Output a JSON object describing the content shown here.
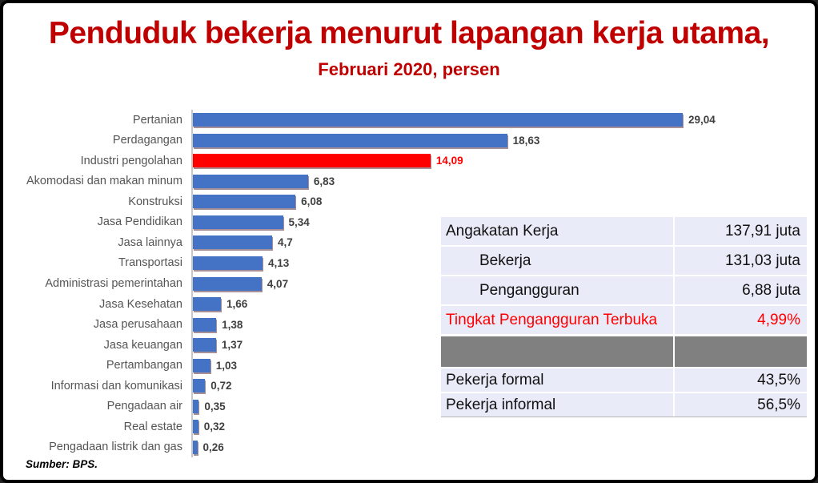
{
  "title": "Penduduk bekerja menurut lapangan kerja utama,",
  "subtitle": "Februari 2020, persen",
  "source_note": "Sumber: BPS.",
  "colors": {
    "title_red": "#c00000",
    "bar_blue": "#4472c4",
    "bar_highlight_red": "#ff0000",
    "value_label_gray": "#404040",
    "table_row_bg": "#e9ebf8",
    "table_gray_band": "#808080",
    "table_red": "#ff0000",
    "axis_line": "#c6c6c6"
  },
  "chart_data": {
    "type": "bar",
    "orientation": "horizontal",
    "title": "Penduduk bekerja menurut lapangan kerja utama,",
    "subtitle": "Februari 2020, persen",
    "unit": "persen",
    "xlim": [
      0,
      30
    ],
    "grid": false,
    "legend": false,
    "highlight_category": "Industri pengolahan",
    "items": [
      {
        "label": "Pertanian",
        "value": 29.04,
        "display": "29,04",
        "color": "#4472c4"
      },
      {
        "label": "Perdagangan",
        "value": 18.63,
        "display": "18,63",
        "color": "#4472c4"
      },
      {
        "label": "Industri pengolahan",
        "value": 14.09,
        "display": "14,09",
        "color": "#ff0000"
      },
      {
        "label": "Akomodasi dan makan minum",
        "value": 6.83,
        "display": "6,83",
        "color": "#4472c4"
      },
      {
        "label": "Konstruksi",
        "value": 6.08,
        "display": "6,08",
        "color": "#4472c4"
      },
      {
        "label": "Jasa Pendidikan",
        "value": 5.34,
        "display": "5,34",
        "color": "#4472c4"
      },
      {
        "label": "Jasa lainnya",
        "value": 4.7,
        "display": "4,7",
        "color": "#4472c4"
      },
      {
        "label": "Transportasi",
        "value": 4.13,
        "display": "4,13",
        "color": "#4472c4"
      },
      {
        "label": "Administrasi pemerintahan",
        "value": 4.07,
        "display": "4,07",
        "color": "#4472c4"
      },
      {
        "label": "Jasa Kesehatan",
        "value": 1.66,
        "display": "1,66",
        "color": "#4472c4"
      },
      {
        "label": "Jasa perusahaan",
        "value": 1.38,
        "display": "1,38",
        "color": "#4472c4"
      },
      {
        "label": "Jasa keuangan",
        "value": 1.37,
        "display": "1,37",
        "color": "#4472c4"
      },
      {
        "label": "Pertambangan",
        "value": 1.03,
        "display": "1,03",
        "color": "#4472c4"
      },
      {
        "label": "Informasi dan komunikasi",
        "value": 0.72,
        "display": "0,72",
        "color": "#4472c4"
      },
      {
        "label": "Pengadaan air",
        "value": 0.35,
        "display": "0,35",
        "color": "#4472c4"
      },
      {
        "label": "Real estate",
        "value": 0.32,
        "display": "0,32",
        "color": "#4472c4"
      },
      {
        "label": "Pengadaan listrik dan gas",
        "value": 0.26,
        "display": "0,26",
        "color": "#4472c4"
      }
    ]
  },
  "stats_table": {
    "rows": [
      {
        "label": "Angakatan Kerja",
        "value": "137,91 juta"
      },
      {
        "label": "Bekerja",
        "value": "131,03 juta"
      },
      {
        "label": "Pengangguran",
        "value": "6,88 juta"
      },
      {
        "label": "Tingkat Pengangguran Terbuka",
        "value": "4,99%"
      },
      {
        "label": "",
        "value": ""
      },
      {
        "label": "Pekerja formal",
        "value": "43,5%"
      },
      {
        "label": "Pekerja informal",
        "value": "56,5%"
      }
    ]
  }
}
